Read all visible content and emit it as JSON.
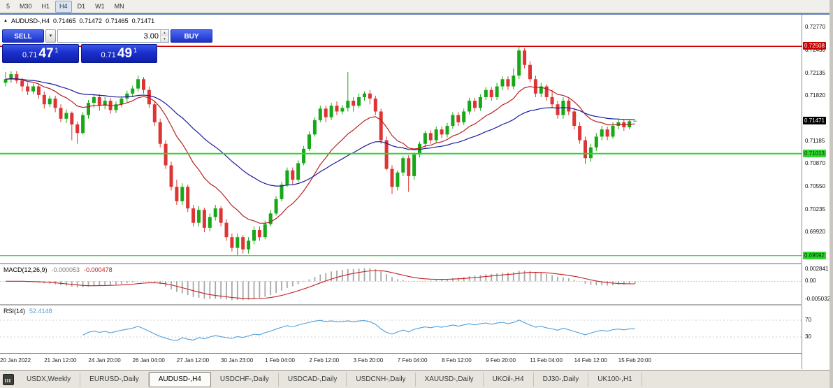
{
  "icons": {
    "window_marker": "▲",
    "dropdown_arrow": "▾",
    "spin_up": "▴",
    "spin_down": "▾"
  },
  "toolbar": {
    "timeframes": [
      {
        "label": "5",
        "active": false
      },
      {
        "label": "M30",
        "active": false
      },
      {
        "label": "H1",
        "active": false
      },
      {
        "label": "H4",
        "active": true
      },
      {
        "label": "D1",
        "active": false
      },
      {
        "label": "W1",
        "active": false
      },
      {
        "label": "MN",
        "active": false
      }
    ]
  },
  "symbol_header": {
    "title": "AUDUSD-,H4",
    "open": "0.71465",
    "high": "0.71472",
    "low": "0.71465",
    "close": "0.71471"
  },
  "trade_panel": {
    "sell_label": "SELL",
    "buy_label": "BUY",
    "volume": "3.00",
    "sell_price": {
      "prefix": "0.71",
      "big": "47",
      "sup": "1"
    },
    "buy_price": {
      "prefix": "0.71",
      "big": "49",
      "sup": "1"
    }
  },
  "chart_data": {
    "type": "candlestick",
    "symbol": "AUDUSD-",
    "timeframe": "H4",
    "y_range": [
      0.6955,
      0.729
    ],
    "bull_color": "#17A817",
    "bear_color": "#DD3434",
    "price_axis_labels": [
      0.7277,
      0.7245,
      0.72135,
      0.7182,
      0.71185,
      0.7087,
      0.7055,
      0.70235,
      0.6992
    ],
    "current_price": 0.71471,
    "levels": [
      {
        "value": 0.72508,
        "color": "#D40000",
        "width": 1.4,
        "badge_bg": "#C80000",
        "badge_fg": "#FFFFFF"
      },
      {
        "value": 0.71013,
        "color": "#2FD42F",
        "width": 2,
        "badge_bg": "#2FD42F",
        "badge_fg": "#003300"
      },
      {
        "value": 0.69592,
        "color": "#2FD42F",
        "width": 1.2,
        "badge_bg": "#2FD42F",
        "badge_fg": "#003300"
      }
    ],
    "overlays": [
      {
        "name": "ma-fast",
        "period": 13,
        "color": "#B42222"
      },
      {
        "name": "ma-slow",
        "period": 34,
        "color": "#1A1A9C"
      }
    ],
    "candles": [
      [
        0.72,
        0.7215,
        0.7195,
        0.7205
      ],
      [
        0.7205,
        0.7216,
        0.72,
        0.7212
      ],
      [
        0.7212,
        0.7216,
        0.7199,
        0.7203
      ],
      [
        0.7203,
        0.7207,
        0.7188,
        0.7195
      ],
      [
        0.7195,
        0.72,
        0.7183,
        0.7188
      ],
      [
        0.7188,
        0.7199,
        0.7184,
        0.7195
      ],
      [
        0.7195,
        0.7199,
        0.7178,
        0.7183
      ],
      [
        0.7183,
        0.7188,
        0.7164,
        0.717
      ],
      [
        0.717,
        0.7182,
        0.7166,
        0.7178
      ],
      [
        0.7178,
        0.7182,
        0.7159,
        0.7165
      ],
      [
        0.7165,
        0.717,
        0.7145,
        0.715
      ],
      [
        0.715,
        0.7163,
        0.7144,
        0.7158
      ],
      [
        0.7158,
        0.716,
        0.712,
        0.7142
      ],
      [
        0.7142,
        0.7146,
        0.7115,
        0.713
      ],
      [
        0.713,
        0.7159,
        0.7128,
        0.7155
      ],
      [
        0.7155,
        0.7176,
        0.715,
        0.7172
      ],
      [
        0.7172,
        0.7184,
        0.7165,
        0.718
      ],
      [
        0.718,
        0.7184,
        0.7161,
        0.7168
      ],
      [
        0.7168,
        0.718,
        0.7163,
        0.7175
      ],
      [
        0.7175,
        0.7179,
        0.7157,
        0.7162
      ],
      [
        0.7162,
        0.7174,
        0.7158,
        0.717
      ],
      [
        0.717,
        0.7181,
        0.7166,
        0.7178
      ],
      [
        0.7178,
        0.7189,
        0.7173,
        0.7185
      ],
      [
        0.7185,
        0.7196,
        0.718,
        0.7192
      ],
      [
        0.7192,
        0.721,
        0.7188,
        0.7205
      ],
      [
        0.7205,
        0.7208,
        0.7185,
        0.719
      ],
      [
        0.719,
        0.7195,
        0.7165,
        0.717
      ],
      [
        0.717,
        0.7175,
        0.714,
        0.7145
      ],
      [
        0.7145,
        0.715,
        0.711,
        0.7115
      ],
      [
        0.7115,
        0.712,
        0.708,
        0.7085
      ],
      [
        0.7085,
        0.709,
        0.705,
        0.7055
      ],
      [
        0.7055,
        0.7065,
        0.703,
        0.7035
      ],
      [
        0.7035,
        0.706,
        0.703,
        0.7055
      ],
      [
        0.7055,
        0.7058,
        0.702,
        0.7025
      ],
      [
        0.7025,
        0.703,
        0.7,
        0.7005
      ],
      [
        0.7005,
        0.7028,
        0.7,
        0.7023
      ],
      [
        0.7023,
        0.7026,
        0.6992,
        0.6998
      ],
      [
        0.6998,
        0.7018,
        0.6993,
        0.7013
      ],
      [
        0.7013,
        0.703,
        0.7008,
        0.7025
      ],
      [
        0.7025,
        0.7028,
        0.7,
        0.7005
      ],
      [
        0.7005,
        0.701,
        0.698,
        0.6985
      ],
      [
        0.6985,
        0.699,
        0.6965,
        0.697
      ],
      [
        0.697,
        0.699,
        0.69592,
        0.6985
      ],
      [
        0.6985,
        0.6988,
        0.6962,
        0.6968
      ],
      [
        0.6968,
        0.6985,
        0.6962,
        0.698
      ],
      [
        0.698,
        0.7,
        0.6975,
        0.6995
      ],
      [
        0.6995,
        0.7,
        0.698,
        0.6985
      ],
      [
        0.6985,
        0.7008,
        0.6982,
        0.7003
      ],
      [
        0.7003,
        0.7023,
        0.7,
        0.7018
      ],
      [
        0.7018,
        0.7042,
        0.7015,
        0.7038
      ],
      [
        0.7038,
        0.7062,
        0.7035,
        0.7058
      ],
      [
        0.7058,
        0.7082,
        0.7055,
        0.7078
      ],
      [
        0.7078,
        0.7082,
        0.7058,
        0.7065
      ],
      [
        0.7065,
        0.7092,
        0.7062,
        0.7088
      ],
      [
        0.7088,
        0.7112,
        0.7085,
        0.7108
      ],
      [
        0.7108,
        0.7132,
        0.7105,
        0.7128
      ],
      [
        0.7128,
        0.7152,
        0.7125,
        0.7148
      ],
      [
        0.7148,
        0.7168,
        0.7145,
        0.7164
      ],
      [
        0.7164,
        0.7168,
        0.7145,
        0.7152
      ],
      [
        0.7152,
        0.7172,
        0.7148,
        0.7168
      ],
      [
        0.7168,
        0.7174,
        0.7155,
        0.716
      ],
      [
        0.716,
        0.7169,
        0.7156,
        0.7165
      ],
      [
        0.7165,
        0.7215,
        0.716,
        0.7175
      ],
      [
        0.7175,
        0.718,
        0.716,
        0.7168
      ],
      [
        0.7168,
        0.7185,
        0.7165,
        0.718
      ],
      [
        0.718,
        0.7188,
        0.7175,
        0.7185
      ],
      [
        0.7185,
        0.719,
        0.717,
        0.7178
      ],
      [
        0.7178,
        0.7182,
        0.7155,
        0.716
      ],
      [
        0.716,
        0.7164,
        0.7115,
        0.712
      ],
      [
        0.712,
        0.7125,
        0.7078,
        0.708
      ],
      [
        0.708,
        0.7085,
        0.7045,
        0.7055
      ],
      [
        0.7055,
        0.7078,
        0.705,
        0.7075
      ],
      [
        0.7075,
        0.7098,
        0.707,
        0.7095
      ],
      [
        0.7095,
        0.7099,
        0.7048,
        0.707
      ],
      [
        0.707,
        0.7103,
        0.7065,
        0.71
      ],
      [
        0.71,
        0.7118,
        0.7096,
        0.7115
      ],
      [
        0.7115,
        0.7133,
        0.711,
        0.713
      ],
      [
        0.713,
        0.7134,
        0.7115,
        0.712
      ],
      [
        0.712,
        0.7139,
        0.7116,
        0.7135
      ],
      [
        0.7135,
        0.7139,
        0.7123,
        0.7128
      ],
      [
        0.7128,
        0.7144,
        0.7124,
        0.714
      ],
      [
        0.714,
        0.7159,
        0.7136,
        0.7155
      ],
      [
        0.7155,
        0.7159,
        0.714,
        0.7145
      ],
      [
        0.7145,
        0.7164,
        0.7141,
        0.716
      ],
      [
        0.716,
        0.7179,
        0.7156,
        0.7175
      ],
      [
        0.7175,
        0.7179,
        0.716,
        0.7165
      ],
      [
        0.7165,
        0.7184,
        0.7161,
        0.718
      ],
      [
        0.718,
        0.7194,
        0.7176,
        0.719
      ],
      [
        0.719,
        0.7194,
        0.7175,
        0.718
      ],
      [
        0.718,
        0.72,
        0.7176,
        0.7195
      ],
      [
        0.7195,
        0.7209,
        0.719,
        0.7205
      ],
      [
        0.7205,
        0.7209,
        0.719,
        0.7195
      ],
      [
        0.7195,
        0.722,
        0.7191,
        0.721
      ],
      [
        0.721,
        0.725,
        0.7205,
        0.7245
      ],
      [
        0.7245,
        0.7248,
        0.722,
        0.7225
      ],
      [
        0.7225,
        0.723,
        0.72,
        0.7205
      ],
      [
        0.7205,
        0.721,
        0.718,
        0.7185
      ],
      [
        0.7185,
        0.72,
        0.718,
        0.7195
      ],
      [
        0.7195,
        0.7198,
        0.7175,
        0.718
      ],
      [
        0.718,
        0.719,
        0.7165,
        0.717
      ],
      [
        0.717,
        0.7175,
        0.715,
        0.7155
      ],
      [
        0.7155,
        0.718,
        0.715,
        0.7175
      ],
      [
        0.7175,
        0.7178,
        0.7155,
        0.716
      ],
      [
        0.716,
        0.7165,
        0.7135,
        0.714
      ],
      [
        0.714,
        0.7145,
        0.7115,
        0.712
      ],
      [
        0.712,
        0.7125,
        0.7087,
        0.7095
      ],
      [
        0.7095,
        0.7115,
        0.709,
        0.711
      ],
      [
        0.711,
        0.713,
        0.7105,
        0.7125
      ],
      [
        0.7125,
        0.714,
        0.712,
        0.7135
      ],
      [
        0.7135,
        0.7139,
        0.712,
        0.7125
      ],
      [
        0.7125,
        0.7145,
        0.7122,
        0.714
      ],
      [
        0.714,
        0.715,
        0.7135,
        0.7145
      ],
      [
        0.7145,
        0.7149,
        0.7133,
        0.7138
      ],
      [
        0.7138,
        0.7148,
        0.7135,
        0.71465
      ],
      [
        0.71465,
        0.71472,
        0.71465,
        0.71471
      ]
    ],
    "time_labels": [
      {
        "i": 0,
        "text": "20 Jan 2022"
      },
      {
        "i": 8,
        "text": "21 Jan 12:00"
      },
      {
        "i": 16,
        "text": "24 Jan 20:00"
      },
      {
        "i": 24,
        "text": "26 Jan 04:00"
      },
      {
        "i": 32,
        "text": "27 Jan 12:00"
      },
      {
        "i": 40,
        "text": "30 Jan 23:00"
      },
      {
        "i": 48,
        "text": "1 Feb 04:00"
      },
      {
        "i": 56,
        "text": "2 Feb 12:00"
      },
      {
        "i": 64,
        "text": "3 Feb 20:00"
      },
      {
        "i": 72,
        "text": "7 Feb 04:00"
      },
      {
        "i": 80,
        "text": "8 Feb 12:00"
      },
      {
        "i": 88,
        "text": "9 Feb 20:00"
      },
      {
        "i": 96,
        "text": "11 Feb 04:00"
      },
      {
        "i": 104,
        "text": "14 Feb 12:00"
      },
      {
        "i": 112,
        "text": "15 Feb 20:00"
      }
    ],
    "indicators": {
      "macd": {
        "label": "MACD(12,26,9)",
        "value_main": "-0.000053",
        "value_signal": "-0.000478",
        "hist_color": "#A8A8A8",
        "signal_color": "#C22020",
        "axis_labels": [
          "0.002841",
          "0.00",
          "-0.005032"
        ]
      },
      "rsi": {
        "label": "RSI(14)",
        "value": "52.4148",
        "period": 14,
        "levels": [
          70,
          30
        ],
        "line_color": "#4E9FDD"
      }
    }
  },
  "tabs": {
    "active_index": 2,
    "items": [
      "USDX,Weekly",
      "EURUSD-,Daily",
      "AUDUSD-,H4",
      "USDCHF-,Daily",
      "USDCAD-,Daily",
      "USDCNH-,Daily",
      "XAUUSD-,Daily",
      "UKOil-,H4",
      "DJ30-,Daily",
      "UK100-,H1"
    ]
  }
}
